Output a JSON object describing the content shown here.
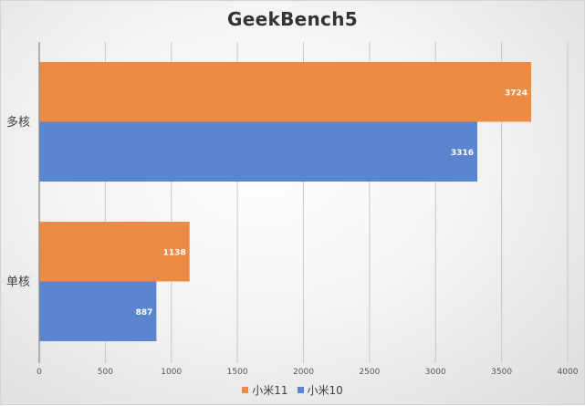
{
  "chart_data": {
    "type": "bar",
    "orientation": "horizontal",
    "title": "GeekBench5",
    "categories": [
      "多核",
      "单核"
    ],
    "series": [
      {
        "name": "小米11",
        "values": [
          3724,
          1138
        ],
        "color": "#ED8B44"
      },
      {
        "name": "小米10",
        "values": [
          3316,
          887
        ],
        "color": "#5B85CF"
      }
    ],
    "xlim": [
      0,
      4000
    ],
    "x_ticks": [
      0,
      500,
      1000,
      1500,
      2000,
      2500,
      3000,
      3500,
      4000
    ],
    "grid": "vertical",
    "legend_position": "bottom",
    "data_labels": true
  }
}
